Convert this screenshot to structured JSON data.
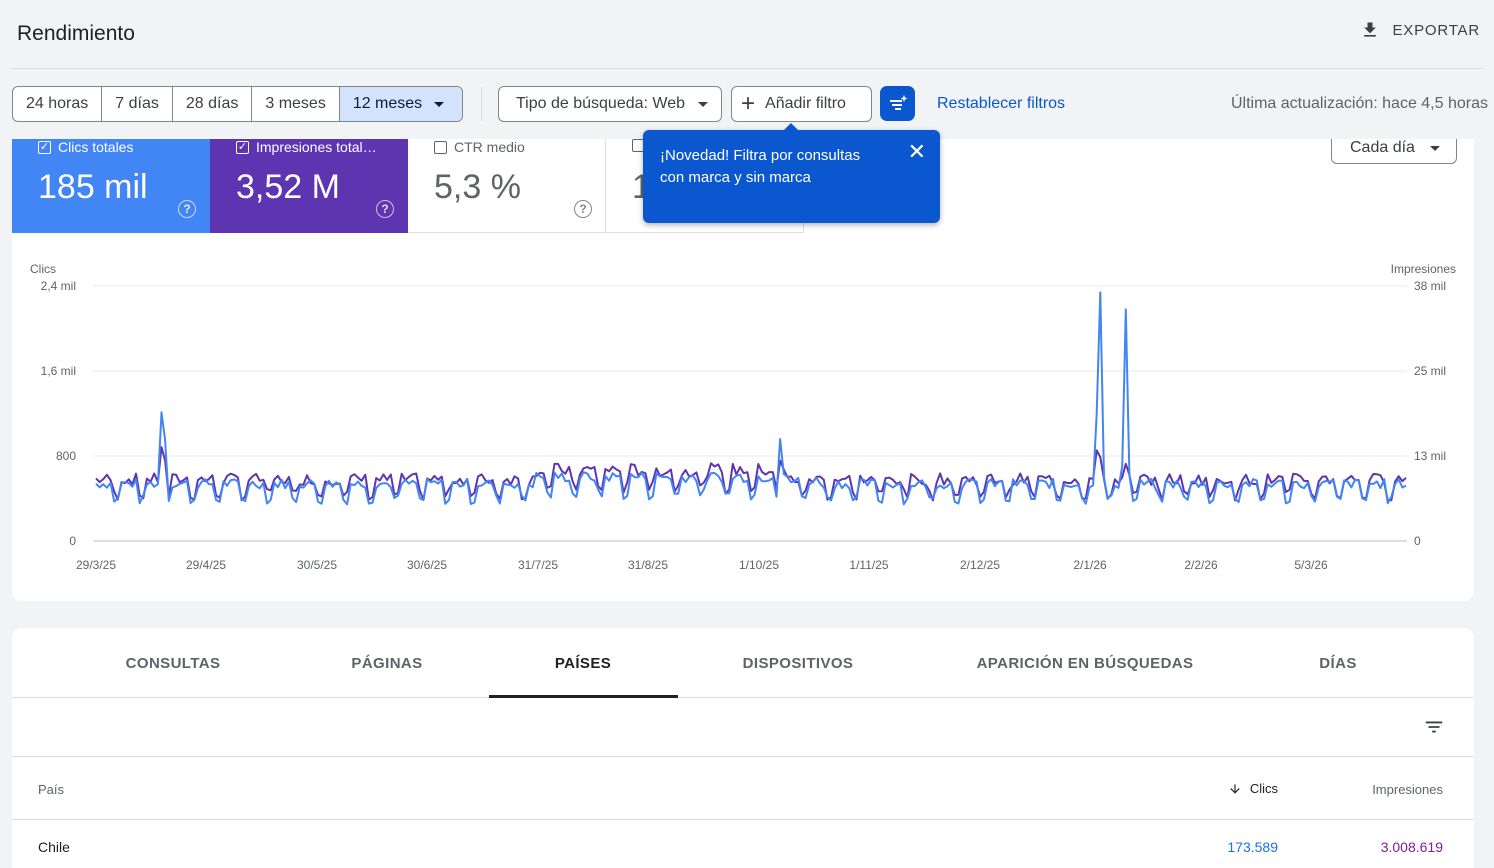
{
  "header": {
    "title": "Rendimiento",
    "export_label": "EXPORTAR"
  },
  "filters": {
    "ranges": [
      "24 horas",
      "7 días",
      "28 días",
      "3 meses",
      "12 meses"
    ],
    "active_range": "12 meses",
    "search_type": "Tipo de búsqueda: Web",
    "add_filter": "Añadir filtro",
    "reset": "Restablecer filtros",
    "last_update": "Última actualización: hace 4,5 horas"
  },
  "metrics": {
    "clicks": {
      "label": "Clics totales",
      "value": "185 mil",
      "checked": true
    },
    "impressions": {
      "label": "Impresiones total…",
      "value": "3,52 M",
      "checked": true
    },
    "ctr": {
      "label": "CTR medio",
      "value": "5,3 %",
      "checked": false
    },
    "position": {
      "value_partial": "1",
      "checked": false
    }
  },
  "granularity": "Cada día",
  "tooltip": {
    "text": "¡Novedad! Filtra por consultas con marca y sin marca"
  },
  "chart_data": {
    "type": "line",
    "left_axis_label": "Clics",
    "right_axis_label": "Impresiones",
    "left_ticks": [
      "0",
      "800",
      "1,6 mil",
      "2,4 mil"
    ],
    "right_ticks": [
      "0",
      "13 mil",
      "25 mil",
      "38 mil"
    ],
    "left_ylim": [
      0,
      2400
    ],
    "right_ylim": [
      0,
      38000
    ],
    "x_ticks": [
      "29/3/25",
      "29/4/25",
      "30/5/25",
      "30/6/25",
      "31/7/25",
      "31/8/25",
      "1/10/25",
      "1/11/25",
      "2/12/25",
      "2/1/26",
      "2/2/26",
      "5/3/26"
    ],
    "series": [
      {
        "name": "Clics",
        "color": "#4285f4"
      },
      {
        "name": "Impresiones",
        "color": "#5e35b1"
      }
    ],
    "daily_points": 361,
    "baseline_clicks": 500,
    "baseline_impressions": 8600,
    "peaks": [
      {
        "date": "16/4/25",
        "clicks": 1210
      },
      {
        "date": "25/12/25",
        "clicks": 2340
      },
      {
        "date": "1/1/26",
        "clicks": 2180
      }
    ]
  },
  "table": {
    "tabs": [
      "CONSULTAS",
      "PÁGINAS",
      "PAÍSES",
      "DISPOSITIVOS",
      "APARICIÓN EN BÚSQUEDAS",
      "DÍAS"
    ],
    "active_tab": "PAÍSES",
    "columns": {
      "country": "País",
      "clicks": "Clics",
      "impressions": "Impresiones"
    },
    "rows": [
      {
        "country": "Chile",
        "clicks": "173.589",
        "impressions": "3.008.619"
      }
    ]
  }
}
